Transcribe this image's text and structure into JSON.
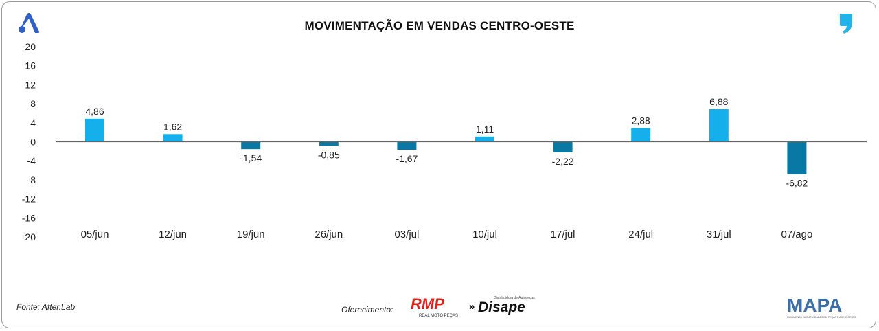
{
  "title": "MOVIMENTAÇÃO EM VENDAS CENTRO-OESTE",
  "source": "Fonte: After.Lab",
  "sponsor_label": "Oferecimento:",
  "logos": {
    "rmp_text": "RMP",
    "rmp_sub": "REAL MOTO PEÇAS",
    "disape_text": "Disape",
    "disape_sub": "Distribuidora de Autopeças",
    "mapa_text": "MAPA",
    "mapa_sub": "MOVIMENTO DAS ATIVIDADES EM PEÇAS E ACESSÓRIOS"
  },
  "colors": {
    "positive": "#15b0ec",
    "negative": "#0a78a4",
    "axis": "#666666",
    "brand_blue": "#2f5fc7",
    "accent_cyan": "#1fb5ea",
    "rmp_red": "#e0231b"
  },
  "chart_data": {
    "type": "bar",
    "title": "MOVIMENTAÇÃO EM VENDAS CENTRO-OESTE",
    "categories": [
      "05/jun",
      "12/jun",
      "19/jun",
      "26/jun",
      "03/jul",
      "10/jul",
      "17/jul",
      "24/jul",
      "31/jul",
      "07/ago"
    ],
    "values": [
      4.86,
      1.62,
      -1.54,
      -0.85,
      -1.67,
      1.11,
      -2.22,
      2.88,
      6.88,
      -6.82
    ],
    "value_labels": [
      "4,86",
      "1,62",
      "-1,54",
      "-0,85",
      "-1,67",
      "1,11",
      "-2,22",
      "2,88",
      "6,88",
      "-6,82"
    ],
    "ylim": [
      -20,
      20
    ],
    "yticks": [
      20,
      16,
      12,
      8,
      4,
      0,
      -4,
      -8,
      -12,
      -16,
      -20
    ],
    "xlabel": "",
    "ylabel": "",
    "grid": false,
    "legend": "none"
  }
}
